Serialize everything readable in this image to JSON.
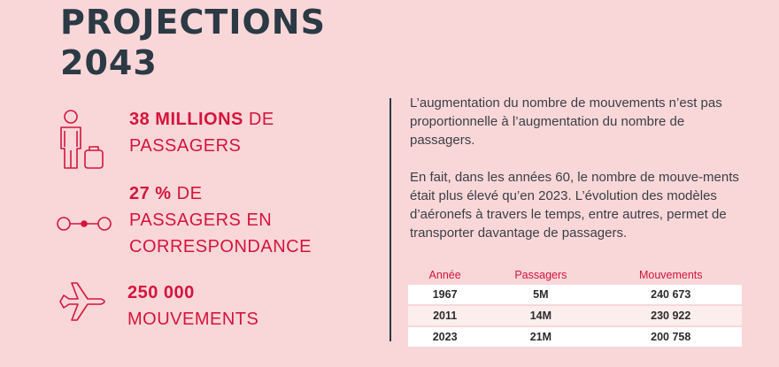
{
  "title": {
    "line1": "PROJECTIONS",
    "line2": "2043"
  },
  "stats": [
    {
      "icon": "passenger-luggage-icon",
      "bold": "38 MILLIONS",
      "rest": " DE",
      "line2": "PASSAGERS"
    },
    {
      "icon": "connection-icon",
      "bold": "27 %",
      "rest": " DE",
      "line2": "PASSAGERS EN",
      "line3": "CORRESPONDANCE"
    },
    {
      "icon": "airplane-icon",
      "bold": "250 000",
      "line2": "MOUVEMENTS"
    }
  ],
  "paragraphs": [
    "L’augmentation du nombre de mouvements n’est pas proportionnelle à l’augmentation du nombre de passagers.",
    "En fait, dans les années 60, le nombre de mouve-ments était plus élevé qu’en 2023. L’évolution des modèles d’aéronefs à travers le temps, entre autres, permet de transporter davantage de passagers."
  ],
  "table": {
    "headers": [
      "Année",
      "Passagers",
      "Mouvements"
    ],
    "rows": [
      [
        "1967",
        "5M",
        "240 673"
      ],
      [
        "2011",
        "14M",
        "230 922"
      ],
      [
        "2023",
        "21M",
        "200 758"
      ]
    ]
  },
  "colors": {
    "background": "#f9d7d9",
    "accent": "#d5143c",
    "title": "#2b3a44"
  }
}
